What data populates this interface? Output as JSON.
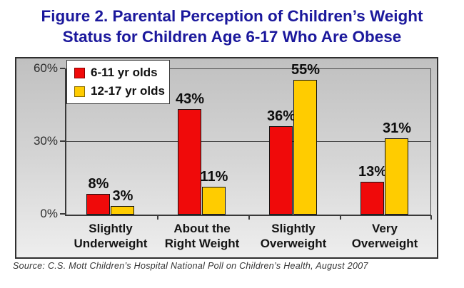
{
  "title": "Figure 2. Parental Perception of Children’s Weight\nStatus for Children Age 6-17 Who Are Obese",
  "source": "Source: C.S. Mott Children’s Hospital National Poll on Children’s Health, August 2007",
  "colors": {
    "title_text": "#1b189c",
    "series1": "#f00a0a",
    "series1_swatch_border": "#8b0000",
    "series2": "#ffcc00",
    "series2_swatch_border": "#8a6d00",
    "bar_border": "#141414",
    "gridline": "#4a4a4a"
  },
  "chart_data": {
    "type": "bar",
    "title": "Parental Perception of Children's Weight Status for Children Age 6-17 Who Are Obese",
    "categories": [
      "Slightly\nUnderweight",
      "About the\nRight Weight",
      "Slightly\nOverweight",
      "Very\nOverweight"
    ],
    "series": [
      {
        "name": "6-11 yr olds",
        "color": "#f00a0a",
        "swatch_border": "#8b0000",
        "values": [
          8,
          43,
          36,
          13
        ]
      },
      {
        "name": "12-17 yr olds",
        "color": "#ffcc00",
        "swatch_border": "#8a6d00",
        "values": [
          3,
          11,
          55,
          31
        ]
      }
    ],
    "value_labels": [
      [
        "8%",
        "43%",
        "36%",
        "13%"
      ],
      [
        "3%",
        "11%",
        "55%",
        "31%"
      ]
    ],
    "y_tick_labels": [
      "60%",
      "30%",
      "0%"
    ],
    "y_tick_values": [
      60,
      30,
      0
    ],
    "ylim": [
      0,
      60
    ],
    "value_suffix": "%",
    "grid": true,
    "legend_position": "top-left"
  }
}
